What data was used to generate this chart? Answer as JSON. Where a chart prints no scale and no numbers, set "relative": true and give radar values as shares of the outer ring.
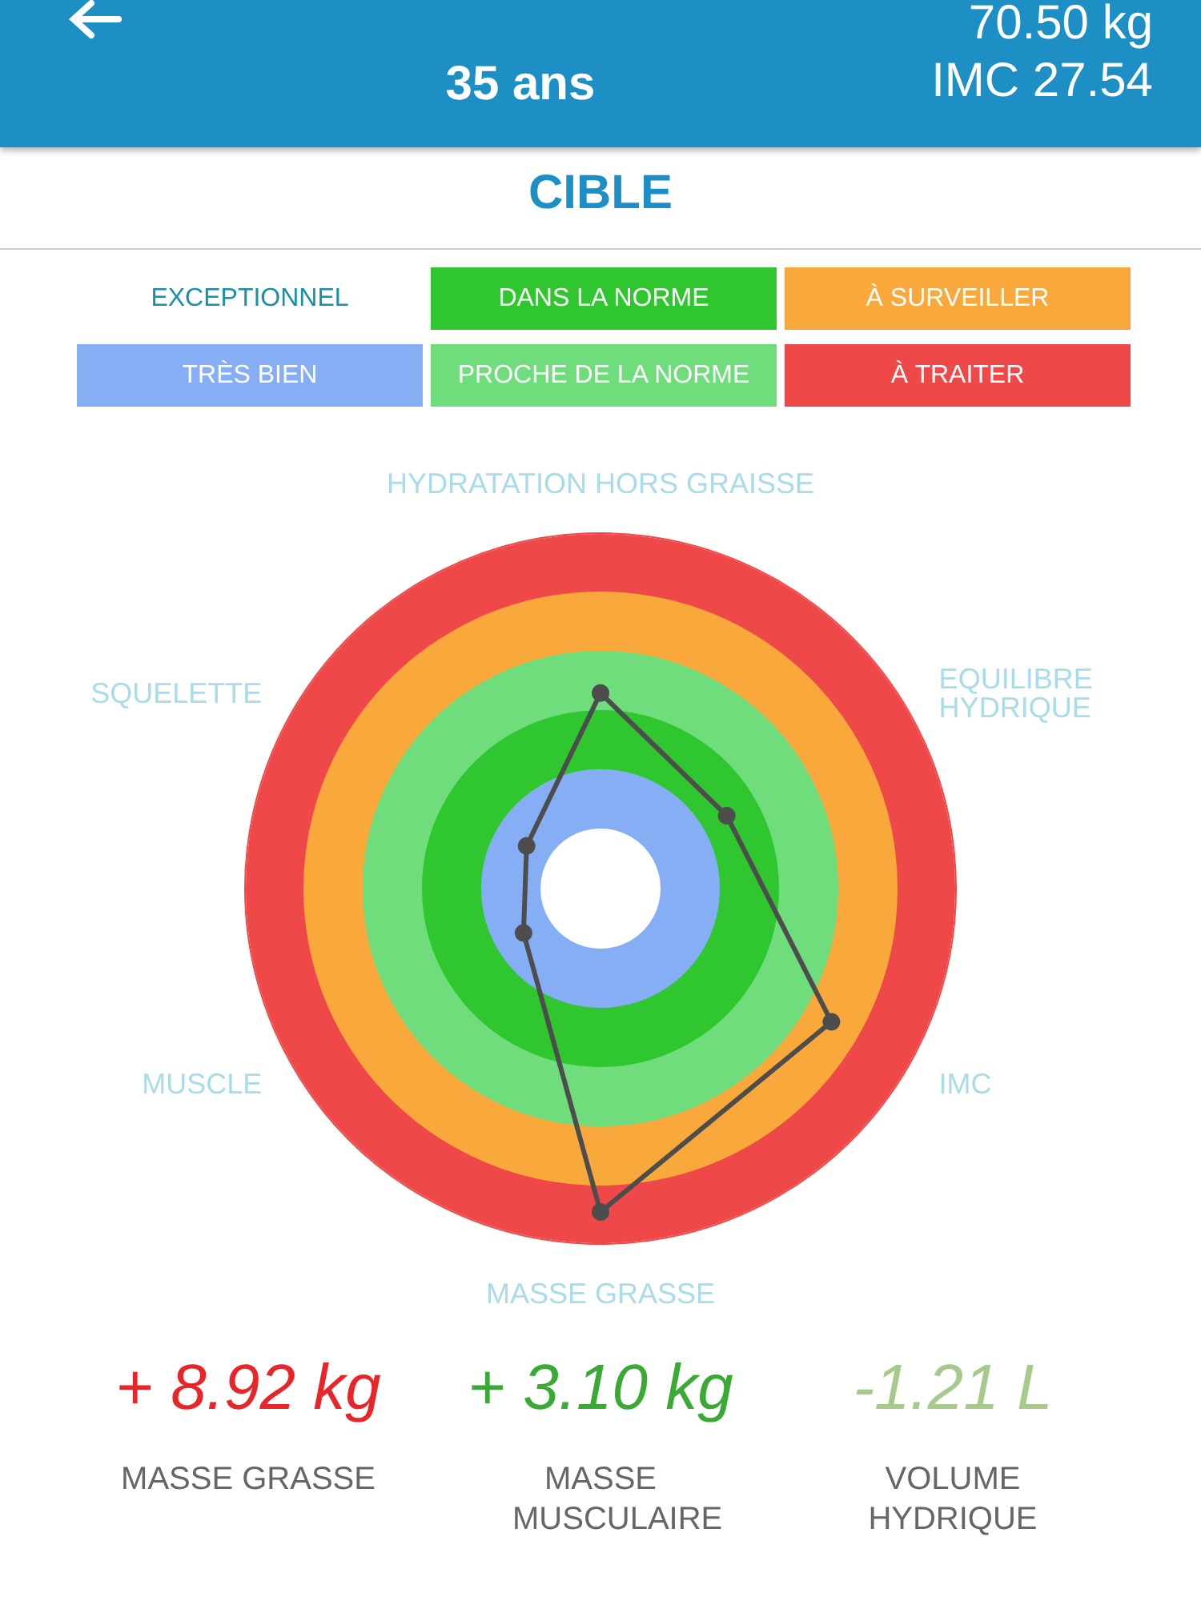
{
  "chart_data": {
    "type": "radar",
    "title": "CIBLE",
    "relative": true,
    "categories": [
      "HYDRATATION HORS GRAISSE",
      "EQUILIBRE HYDRIQUE",
      "IMC",
      "MASSE GRASSE",
      "MUSCLE",
      "SQUELETTE"
    ],
    "series": [
      {
        "color": "#4d4d4d",
        "values": [
          0.55,
          0.41,
          0.75,
          0.91,
          0.25,
          0.24
        ]
      }
    ],
    "marker": "circle",
    "line_style": "solid",
    "grid": false,
    "bands": [
      {
        "axis": "y",
        "label": "EXCEPTIONNEL",
        "color": "#ffffff"
      },
      {
        "axis": "y",
        "label": "TRÈS BIEN",
        "color": "#86aef5"
      },
      {
        "axis": "y",
        "label": "DANS LA NORME",
        "color": "#2fc62f"
      },
      {
        "axis": "y",
        "label": "PROCHE DE LA NORME",
        "color": "#6fdd7b"
      },
      {
        "axis": "y",
        "label": "À SURVEILLER",
        "color": "#f9a93b"
      },
      {
        "axis": "y",
        "label": "À TRAITER",
        "color": "#ef4848"
      }
    ],
    "annotations": [
      "35 ans",
      "70.50 kg",
      "IMC 27.54",
      "+ 8.92 kg",
      "MASSE GRASSE",
      "+ 3.10 kg",
      "MASSE MUSCULAIRE",
      "-1.21 L",
      "VOLUME HYDRIQUE"
    ]
  }
}
